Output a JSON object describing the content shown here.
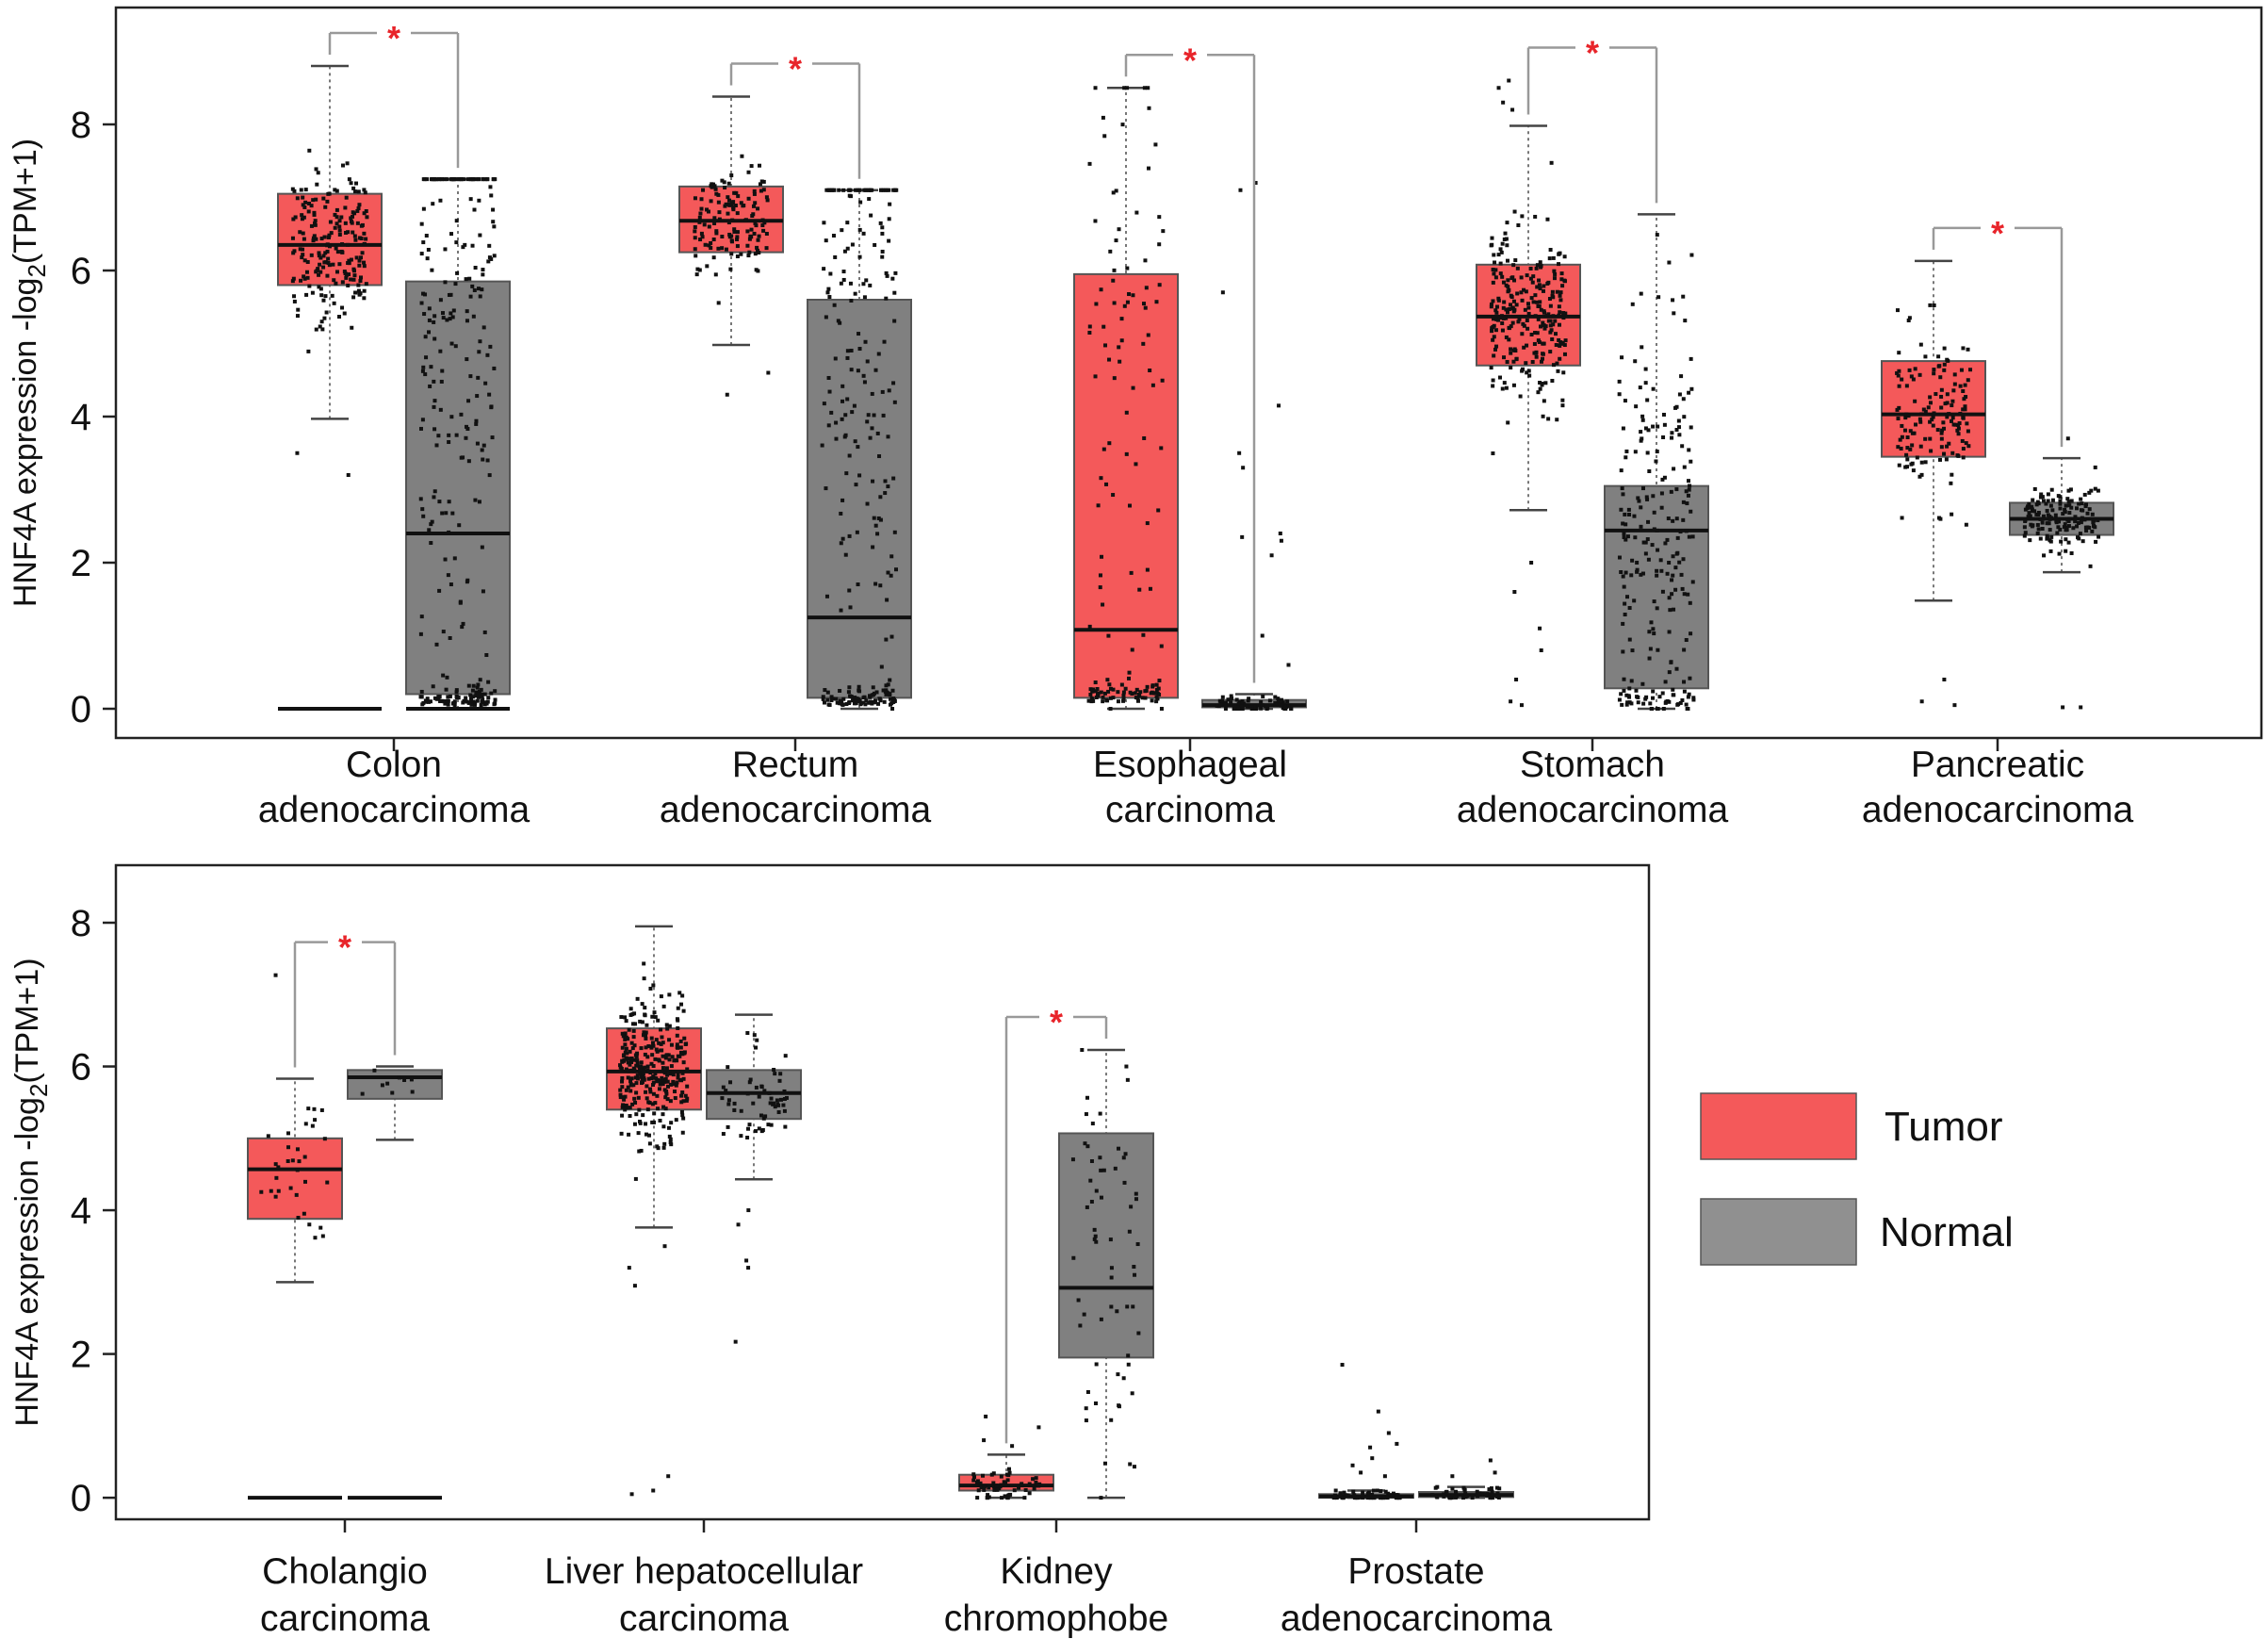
{
  "colors": {
    "tumor": "#F4595A",
    "normal": "#808080",
    "sig": "#E8242A",
    "bracket": "#999999",
    "point": "#111111"
  },
  "chart_data": [
    {
      "type": "box",
      "title": "",
      "ylabel": "HNF4A expression -log2(TPM+1)",
      "ylabel_base": "HNF4A expression -log",
      "ylabel_sub": "2",
      "ylabel_tail": "(TPM+1)",
      "ylim": [
        -0.4,
        9.6
      ],
      "yticks": [
        "0",
        "2",
        "4",
        "6",
        "8"
      ],
      "categories": [
        {
          "label_lines": [
            "Colon",
            "adenocarcinoma"
          ],
          "significant": true,
          "sig_mark": "*",
          "tumor": {
            "whisker_low": 3.97,
            "q1": 5.8,
            "median": 6.35,
            "q3": 7.05,
            "whisker_high": 8.8,
            "cluster": 6.3,
            "n": 210,
            "low_cluster": 0,
            "low_n": 0,
            "extra_high": [],
            "extra_low": [
              3.2,
              3.5
            ],
            "tail_upper": 0,
            "tail_lower": 0,
            "zero_line": true
          },
          "normal": {
            "whisker_low": 0.0,
            "q1": 0.2,
            "median": 2.4,
            "q3": 5.85,
            "whisker_high": 7.25,
            "cluster": 5.8,
            "n": 170,
            "low_cluster": 0.05,
            "low_n": 90,
            "extra_high": [],
            "extra_low": [],
            "tail_upper": 6.8,
            "tail_lower": 1.0,
            "zero_line": true
          }
        },
        {
          "label_lines": [
            "Rectum",
            "adenocarcinoma"
          ],
          "significant": true,
          "sig_mark": "*",
          "tumor": {
            "whisker_low": 4.98,
            "q1": 6.25,
            "median": 6.68,
            "q3": 7.15,
            "whisker_high": 8.38,
            "cluster": 6.6,
            "n": 140,
            "low_cluster": 0,
            "low_n": 0,
            "extra_high": [],
            "extra_low": [
              4.3,
              4.6
            ],
            "tail_upper": 0,
            "tail_lower": 0,
            "zero_line": false
          },
          "normal": {
            "whisker_low": 0.0,
            "q1": 0.15,
            "median": 1.25,
            "q3": 5.6,
            "whisker_high": 7.1,
            "cluster": 5.6,
            "n": 140,
            "low_cluster": 0.05,
            "low_n": 90,
            "extra_high": [],
            "extra_low": [],
            "tail_upper": 6.5,
            "tail_lower": 1.0,
            "zero_line": false
          }
        },
        {
          "label_lines": [
            "Esophageal",
            "carcinoma"
          ],
          "significant": true,
          "sig_mark": "*",
          "tumor": {
            "whisker_low": 0.0,
            "q1": 0.15,
            "median": 1.08,
            "q3": 5.95,
            "whisker_high": 8.5,
            "cluster": 5.0,
            "n": 45,
            "low_cluster": 0.1,
            "low_n": 70,
            "extra_high": [],
            "extra_low": [],
            "tail_upper": 8.3,
            "tail_lower": 0.4,
            "zero_line": false
          },
          "normal": {
            "whisker_low": 0.0,
            "q1": 0.02,
            "median": 0.05,
            "q3": 0.12,
            "whisker_high": 0.2,
            "cluster": 0.05,
            "n": 70,
            "low_cluster": 0,
            "low_n": 0,
            "extra_high": [
              7.2,
              7.1,
              5.7,
              4.15,
              3.5,
              3.3,
              2.4,
              2.35,
              2.3,
              2.1,
              1.0,
              0.6
            ],
            "extra_low": [],
            "tail_upper": 0,
            "tail_lower": 0,
            "zero_line": false
          }
        },
        {
          "label_lines": [
            "Stomach",
            "adenocarcinoma"
          ],
          "significant": true,
          "sig_mark": "*",
          "tumor": {
            "whisker_low": 2.72,
            "q1": 4.7,
            "median": 5.37,
            "q3": 6.08,
            "whisker_high": 7.98,
            "cluster": 5.4,
            "n": 260,
            "low_cluster": 0,
            "low_n": 0,
            "extra_high": [
              8.6,
              8.5,
              8.3,
              8.2
            ],
            "extra_low": [
              2.0,
              1.6,
              1.1,
              0.8,
              0.4,
              0.1,
              0.05
            ],
            "tail_upper": 0,
            "tail_lower": 0,
            "zero_line": false
          },
          "normal": {
            "whisker_low": 0.0,
            "q1": 0.28,
            "median": 2.44,
            "q3": 3.05,
            "whisker_high": 6.77,
            "cluster": 2.4,
            "n": 160,
            "low_cluster": 0.05,
            "low_n": 40,
            "extra_high": [],
            "extra_low": [],
            "tail_upper": 6.5,
            "tail_lower": 1.0,
            "zero_line": false
          }
        },
        {
          "label_lines": [
            "Pancreatic",
            "adenocarcinoma"
          ],
          "significant": true,
          "sig_mark": "*",
          "tumor": {
            "whisker_low": 1.48,
            "q1": 3.45,
            "median": 4.03,
            "q3": 4.76,
            "whisker_high": 6.13,
            "cluster": 4.0,
            "n": 150,
            "low_cluster": 0,
            "low_n": 0,
            "extra_high": [],
            "extra_low": [
              0.4,
              0.1,
              0.05
            ],
            "tail_upper": 0,
            "tail_lower": 0,
            "zero_line": false
          },
          "normal": {
            "whisker_low": 1.87,
            "q1": 2.38,
            "median": 2.6,
            "q3": 2.82,
            "whisker_high": 3.43,
            "cluster": 2.6,
            "n": 150,
            "low_cluster": 0,
            "low_n": 0,
            "extra_high": [
              3.7
            ],
            "extra_low": [
              0.02,
              0.02
            ],
            "tail_upper": 0,
            "tail_lower": 0,
            "zero_line": false
          }
        }
      ]
    },
    {
      "type": "box",
      "title": "",
      "ylabel": "HNF4A  expression -log2(TPM+1)",
      "ylabel_base": "HNF4A  expression -log",
      "ylabel_sub": "2",
      "ylabel_tail": "(TPM+1)",
      "ylim": [
        -0.3,
        8.8
      ],
      "yticks": [
        "0",
        "2",
        "4",
        "6",
        "8"
      ],
      "categories": [
        {
          "label_lines": [
            "Cholangio",
            "carcinoma"
          ],
          "significant": true,
          "sig_mark": "*",
          "tumor": {
            "whisker_low": 3.0,
            "q1": 3.88,
            "median": 4.57,
            "q3": 5.0,
            "whisker_high": 5.83,
            "cluster": 4.5,
            "n": 33,
            "low_cluster": 0,
            "low_n": 0,
            "extra_high": [
              7.27
            ],
            "extra_low": [],
            "tail_upper": 0,
            "tail_lower": 0,
            "zero_line": true
          },
          "normal": {
            "whisker_low": 4.98,
            "q1": 5.55,
            "median": 5.85,
            "q3": 5.95,
            "whisker_high": 6.0,
            "cluster": 5.8,
            "n": 9,
            "low_cluster": 0,
            "low_n": 0,
            "extra_high": [],
            "extra_low": [],
            "tail_upper": 0,
            "tail_lower": 0,
            "zero_line": true
          }
        },
        {
          "label_lines": [
            "Liver hepatocellular",
            "carcinoma"
          ],
          "significant": false,
          "sig_mark": "",
          "tumor": {
            "whisker_low": 3.76,
            "q1": 5.4,
            "median": 5.93,
            "q3": 6.53,
            "whisker_high": 7.95,
            "cluster": 5.9,
            "n": 320,
            "low_cluster": 0,
            "low_n": 0,
            "extra_high": [],
            "extra_low": [
              3.5,
              3.2,
              2.95,
              0.3,
              0.1,
              0.05
            ],
            "tail_upper": 0,
            "tail_lower": 0,
            "zero_line": false
          },
          "normal": {
            "whisker_low": 4.43,
            "q1": 5.27,
            "median": 5.63,
            "q3": 5.95,
            "whisker_high": 6.72,
            "cluster": 5.6,
            "n": 60,
            "low_cluster": 0,
            "low_n": 0,
            "extra_high": [],
            "extra_low": [
              4.0,
              3.8,
              3.3,
              3.2,
              2.17
            ],
            "tail_upper": 0,
            "tail_lower": 0,
            "zero_line": false
          }
        },
        {
          "label_lines": [
            "Kidney",
            "chromophobe"
          ],
          "significant": true,
          "sig_mark": "*",
          "tumor": {
            "whisker_low": 0.0,
            "q1": 0.1,
            "median": 0.17,
            "q3": 0.32,
            "whisker_high": 0.6,
            "cluster": 0.17,
            "n": 60,
            "low_cluster": 0,
            "low_n": 0,
            "extra_high": [
              1.13,
              0.98,
              0.8,
              0.72
            ],
            "extra_low": [],
            "tail_upper": 0,
            "tail_lower": 0,
            "zero_line": false
          },
          "normal": {
            "whisker_low": 0.0,
            "q1": 1.95,
            "median": 2.92,
            "q3": 5.07,
            "whisker_high": 6.23,
            "cluster": 3.5,
            "n": 25,
            "low_cluster": 0,
            "low_n": 0,
            "extra_high": [],
            "extra_low": [],
            "tail_upper": 6.0,
            "tail_lower": 0.1,
            "zero_line": false
          }
        },
        {
          "label_lines": [
            "Prostate",
            "adenocarcinoma"
          ],
          "significant": false,
          "sig_mark": "",
          "tumor": {
            "whisker_low": 0.0,
            "q1": 0.0,
            "median": 0.02,
            "q3": 0.05,
            "whisker_high": 0.1,
            "cluster": 0.03,
            "n": 60,
            "low_cluster": 0,
            "low_n": 0,
            "extra_high": [
              1.85,
              1.2,
              0.9,
              0.75,
              0.7,
              0.55,
              0.45,
              0.35,
              0.3
            ],
            "extra_low": [],
            "tail_upper": 0,
            "tail_lower": 0,
            "zero_line": false
          },
          "normal": {
            "whisker_low": 0.0,
            "q1": 0.01,
            "median": 0.04,
            "q3": 0.08,
            "whisker_high": 0.15,
            "cluster": 0.05,
            "n": 50,
            "low_cluster": 0,
            "low_n": 0,
            "extra_high": [
              0.52,
              0.35,
              0.3
            ],
            "extra_low": [],
            "tail_upper": 0,
            "tail_lower": 0,
            "zero_line": false
          }
        }
      ]
    }
  ],
  "legend": {
    "entries": [
      {
        "label": "Tumor",
        "series": "tumor"
      },
      {
        "label": "Normal",
        "series": "normal"
      }
    ]
  }
}
